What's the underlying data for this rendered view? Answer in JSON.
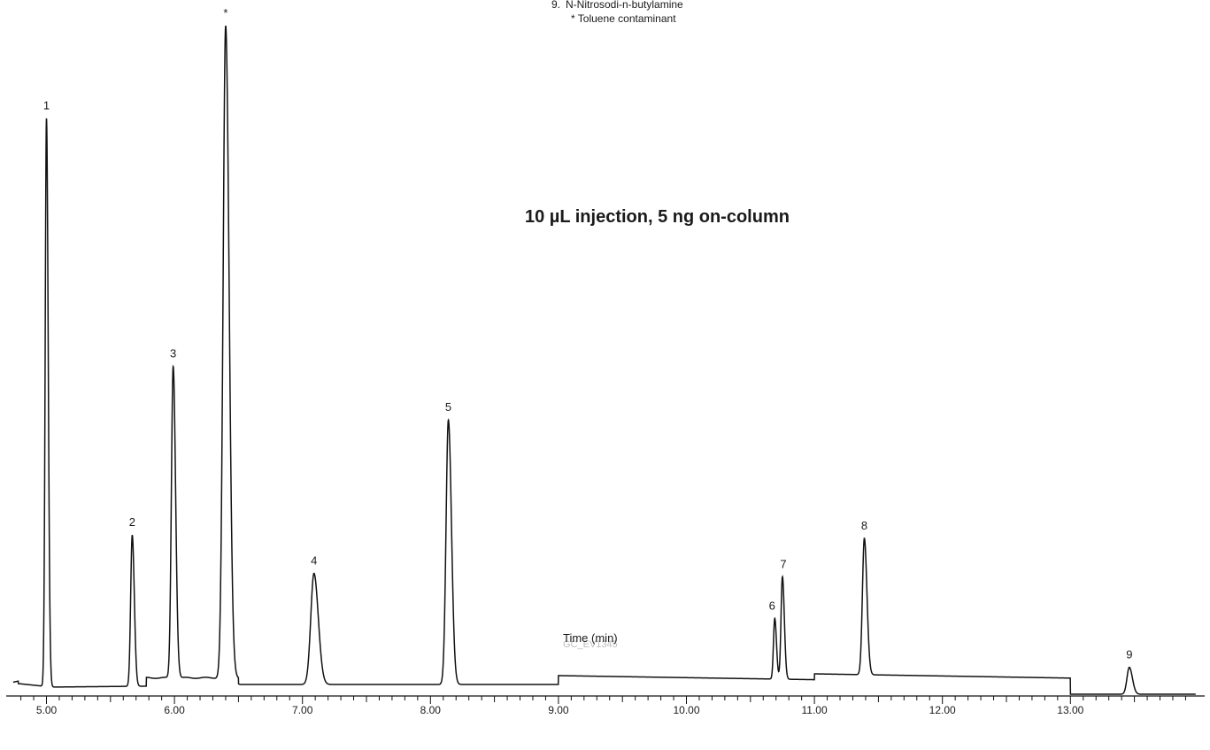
{
  "chart_data": {
    "type": "line",
    "title": "",
    "xlabel": "Time (min)",
    "ylabel": "",
    "xlim": [
      4.72,
      14.0
    ],
    "ylim": [
      0,
      100
    ],
    "x_ticks": [
      "5.00",
      "6.00",
      "7.00",
      "8.00",
      "9.00",
      "10.00",
      "11.00",
      "12.00",
      "13.00"
    ],
    "grid": false,
    "annotation": "10 µL injection, 5 ng on-column",
    "legend": [
      {
        "num": "9.",
        "text": "N-Nitrosodi-n-butylamine"
      },
      {
        "num": "",
        "text": "* Toluene contaminant"
      }
    ],
    "figure_id": "GC_EV1345",
    "peaks": [
      {
        "label": "1",
        "rt": 5.0,
        "height": 86.0
      },
      {
        "label": "2",
        "rt": 5.67,
        "height": 23.0
      },
      {
        "label": "3",
        "rt": 5.99,
        "height": 48.5
      },
      {
        "label": "*",
        "rt": 6.4,
        "height": 100.0
      },
      {
        "label": "4",
        "rt": 7.09,
        "height": 17.2
      },
      {
        "label": "5",
        "rt": 8.14,
        "height": 40.4
      },
      {
        "label": "6",
        "rt": 10.69,
        "height": 10.4
      },
      {
        "label": "7",
        "rt": 10.75,
        "height": 16.7
      },
      {
        "label": "8",
        "rt": 11.39,
        "height": 22.5
      },
      {
        "label": "9",
        "rt": 13.46,
        "height": 3.0
      }
    ]
  }
}
